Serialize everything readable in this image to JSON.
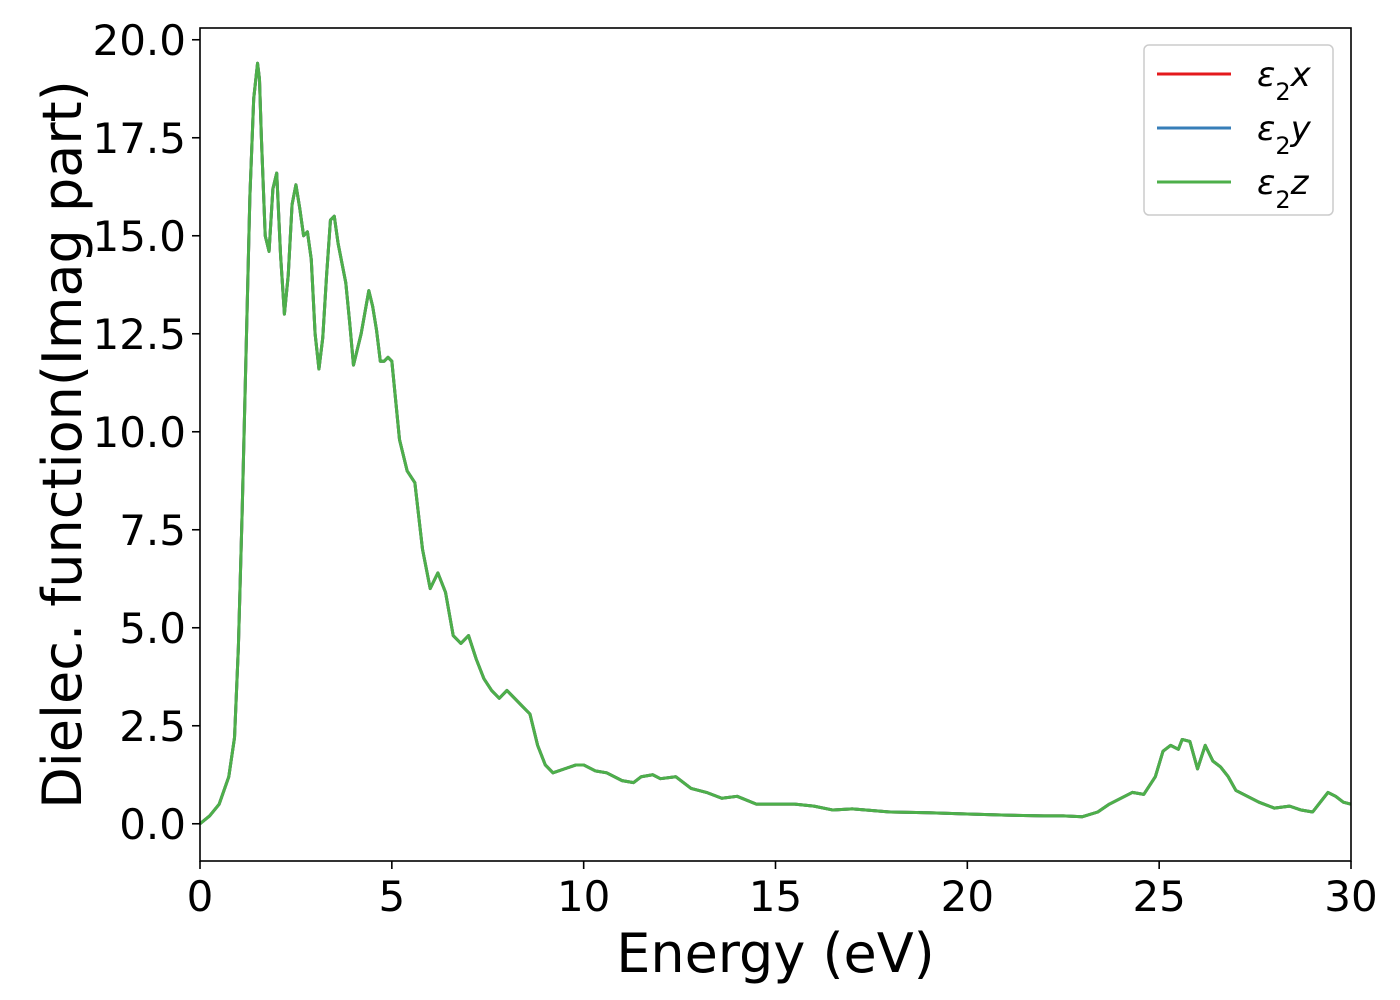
{
  "chart_data": {
    "type": "line",
    "title": "",
    "xlabel": "Energy (eV)",
    "ylabel": "Dielec. function(Imag part)",
    "xlim": [
      0,
      30
    ],
    "ylim": [
      -0.95,
      20.3
    ],
    "xticks": [
      0,
      5,
      10,
      15,
      20,
      25,
      30
    ],
    "xtick_labels": [
      "0",
      "5",
      "10",
      "15",
      "20",
      "25",
      "30"
    ],
    "yticks": [
      0.0,
      2.5,
      5.0,
      7.5,
      10.0,
      12.5,
      15.0,
      17.5,
      20.0
    ],
    "ytick_labels": [
      "0.0",
      "2.5",
      "5.0",
      "7.5",
      "10.0",
      "12.5",
      "15.0",
      "17.5",
      "20.0"
    ],
    "grid": false,
    "legend_position": "top-right",
    "x": [
      0,
      0.25,
      0.5,
      0.75,
      0.9,
      1.0,
      1.1,
      1.2,
      1.3,
      1.4,
      1.5,
      1.55,
      1.6,
      1.7,
      1.8,
      1.9,
      2.0,
      2.1,
      2.2,
      2.3,
      2.4,
      2.5,
      2.6,
      2.7,
      2.8,
      2.9,
      3.0,
      3.1,
      3.2,
      3.3,
      3.4,
      3.5,
      3.6,
      3.7,
      3.8,
      3.9,
      4.0,
      4.2,
      4.4,
      4.5,
      4.6,
      4.7,
      4.8,
      4.9,
      5.0,
      5.2,
      5.4,
      5.6,
      5.8,
      6.0,
      6.2,
      6.4,
      6.6,
      6.8,
      7.0,
      7.2,
      7.4,
      7.6,
      7.8,
      8.0,
      8.2,
      8.4,
      8.6,
      8.8,
      9.0,
      9.2,
      9.5,
      9.8,
      10.0,
      10.3,
      10.6,
      11.0,
      11.3,
      11.5,
      11.8,
      12.0,
      12.4,
      12.8,
      13.2,
      13.6,
      14.0,
      14.5,
      15.0,
      15.5,
      16.0,
      16.5,
      17.0,
      18.0,
      19.0,
      20.0,
      21.0,
      22.0,
      22.5,
      23.0,
      23.4,
      23.7,
      24.0,
      24.3,
      24.6,
      24.9,
      25.1,
      25.3,
      25.5,
      25.6,
      25.8,
      26.0,
      26.2,
      26.4,
      26.6,
      26.8,
      27.0,
      27.3,
      27.6,
      28.0,
      28.4,
      28.7,
      29.0,
      29.2,
      29.4,
      29.6,
      29.8,
      30.0
    ],
    "series": [
      {
        "name": "ε2x",
        "color": "#e41a1c",
        "y": [
          0.0,
          0.2,
          0.5,
          1.2,
          2.2,
          4.5,
          8.0,
          12.0,
          16.0,
          18.5,
          19.4,
          19.0,
          17.5,
          15.0,
          14.6,
          16.2,
          16.6,
          14.5,
          13.0,
          14.0,
          15.8,
          16.3,
          15.7,
          15.0,
          15.1,
          14.4,
          12.5,
          11.6,
          12.4,
          14.0,
          15.4,
          15.5,
          14.8,
          14.3,
          13.8,
          12.8,
          11.7,
          12.5,
          13.6,
          13.2,
          12.6,
          11.8,
          11.8,
          11.9,
          11.8,
          9.8,
          9.0,
          8.7,
          7.0,
          6.0,
          6.4,
          5.9,
          4.8,
          4.6,
          4.8,
          4.2,
          3.7,
          3.4,
          3.2,
          3.4,
          3.2,
          3.0,
          2.8,
          2.0,
          1.5,
          1.3,
          1.4,
          1.5,
          1.5,
          1.35,
          1.3,
          1.1,
          1.05,
          1.2,
          1.25,
          1.15,
          1.2,
          0.9,
          0.8,
          0.65,
          0.7,
          0.5,
          0.5,
          0.5,
          0.45,
          0.35,
          0.38,
          0.3,
          0.28,
          0.25,
          0.22,
          0.2,
          0.2,
          0.18,
          0.3,
          0.5,
          0.65,
          0.8,
          0.75,
          1.2,
          1.85,
          2.0,
          1.9,
          2.15,
          2.1,
          1.4,
          2.0,
          1.6,
          1.45,
          1.2,
          0.85,
          0.7,
          0.55,
          0.4,
          0.45,
          0.35,
          0.3,
          0.55,
          0.8,
          0.7,
          0.55,
          0.5
        ]
      },
      {
        "name": "ε2y",
        "color": "#377eb8",
        "y": [
          0.0,
          0.2,
          0.5,
          1.2,
          2.2,
          4.5,
          8.0,
          12.0,
          16.0,
          18.5,
          19.4,
          19.0,
          17.5,
          15.0,
          14.6,
          16.2,
          16.6,
          14.5,
          13.0,
          14.0,
          15.8,
          16.3,
          15.7,
          15.0,
          15.1,
          14.4,
          12.5,
          11.6,
          12.4,
          14.0,
          15.4,
          15.5,
          14.8,
          14.3,
          13.8,
          12.8,
          11.7,
          12.5,
          13.6,
          13.2,
          12.6,
          11.8,
          11.8,
          11.9,
          11.8,
          9.8,
          9.0,
          8.7,
          7.0,
          6.0,
          6.4,
          5.9,
          4.8,
          4.6,
          4.8,
          4.2,
          3.7,
          3.4,
          3.2,
          3.4,
          3.2,
          3.0,
          2.8,
          2.0,
          1.5,
          1.3,
          1.4,
          1.5,
          1.5,
          1.35,
          1.3,
          1.1,
          1.05,
          1.2,
          1.25,
          1.15,
          1.2,
          0.9,
          0.8,
          0.65,
          0.7,
          0.5,
          0.5,
          0.5,
          0.45,
          0.35,
          0.38,
          0.3,
          0.28,
          0.25,
          0.22,
          0.2,
          0.2,
          0.18,
          0.3,
          0.5,
          0.65,
          0.8,
          0.75,
          1.2,
          1.85,
          2.0,
          1.9,
          2.15,
          2.1,
          1.4,
          2.0,
          1.6,
          1.45,
          1.2,
          0.85,
          0.7,
          0.55,
          0.4,
          0.45,
          0.35,
          0.3,
          0.55,
          0.8,
          0.7,
          0.55,
          0.5
        ]
      },
      {
        "name": "ε2z",
        "color": "#4daf4a",
        "y": [
          0.0,
          0.2,
          0.5,
          1.2,
          2.2,
          4.5,
          8.0,
          12.0,
          16.0,
          18.5,
          19.4,
          19.0,
          17.5,
          15.0,
          14.6,
          16.2,
          16.6,
          14.5,
          13.0,
          14.0,
          15.8,
          16.3,
          15.7,
          15.0,
          15.1,
          14.4,
          12.5,
          11.6,
          12.4,
          14.0,
          15.4,
          15.5,
          14.8,
          14.3,
          13.8,
          12.8,
          11.7,
          12.5,
          13.6,
          13.2,
          12.6,
          11.8,
          11.8,
          11.9,
          11.8,
          9.8,
          9.0,
          8.7,
          7.0,
          6.0,
          6.4,
          5.9,
          4.8,
          4.6,
          4.8,
          4.2,
          3.7,
          3.4,
          3.2,
          3.4,
          3.2,
          3.0,
          2.8,
          2.0,
          1.5,
          1.3,
          1.4,
          1.5,
          1.5,
          1.35,
          1.3,
          1.1,
          1.05,
          1.2,
          1.25,
          1.15,
          1.2,
          0.9,
          0.8,
          0.65,
          0.7,
          0.5,
          0.5,
          0.5,
          0.45,
          0.35,
          0.38,
          0.3,
          0.28,
          0.25,
          0.22,
          0.2,
          0.2,
          0.18,
          0.3,
          0.5,
          0.65,
          0.8,
          0.75,
          1.2,
          1.85,
          2.0,
          1.9,
          2.15,
          2.1,
          1.4,
          2.0,
          1.6,
          1.45,
          1.2,
          0.85,
          0.7,
          0.55,
          0.4,
          0.45,
          0.35,
          0.3,
          0.55,
          0.8,
          0.7,
          0.55,
          0.5
        ]
      }
    ]
  },
  "legend": {
    "entries": [
      {
        "base": "ε",
        "sub": "2",
        "suffix": "x",
        "color": "#e41a1c"
      },
      {
        "base": "ε",
        "sub": "2",
        "suffix": "y",
        "color": "#377eb8"
      },
      {
        "base": "ε",
        "sub": "2",
        "suffix": "z",
        "color": "#4daf4a"
      }
    ]
  }
}
